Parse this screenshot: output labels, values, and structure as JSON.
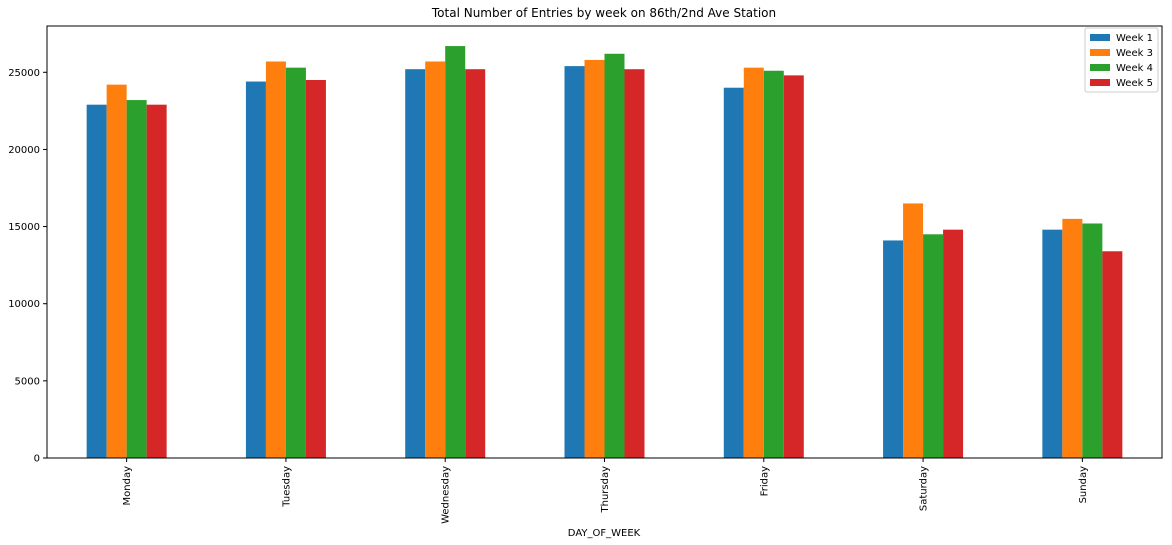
{
  "chart_data": {
    "type": "bar",
    "title": "Total Number of Entries by week on 86th/2nd Ave Station",
    "xlabel": "DAY_OF_WEEK",
    "ylabel": "",
    "categories": [
      "Monday",
      "Tuesday",
      "Wednesday",
      "Thursday",
      "Friday",
      "Saturday",
      "Sunday"
    ],
    "series": [
      {
        "name": "Week 1",
        "color": "#1f77b4",
        "values": [
          22900,
          24400,
          25200,
          25400,
          24000,
          14100,
          14800
        ]
      },
      {
        "name": "Week 3",
        "color": "#ff7f0e",
        "values": [
          24200,
          25700,
          25700,
          25800,
          25300,
          16500,
          15500
        ]
      },
      {
        "name": "Week 4",
        "color": "#2ca02c",
        "values": [
          23200,
          25300,
          26700,
          26200,
          25100,
          14500,
          15200
        ]
      },
      {
        "name": "Week 5",
        "color": "#d62728",
        "values": [
          22900,
          24500,
          25200,
          25200,
          24800,
          14800,
          13400
        ]
      }
    ],
    "yticks": [
      0,
      5000,
      10000,
      15000,
      20000,
      25000
    ],
    "ylim": [
      0,
      28000
    ],
    "grid": false,
    "legend": "top-right"
  }
}
